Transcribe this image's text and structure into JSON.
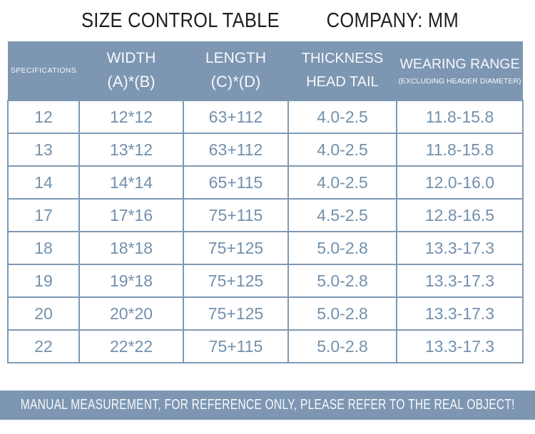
{
  "title": {
    "left": "SIZE CONTROL TABLE",
    "right": "COMPANY: MM"
  },
  "table": {
    "columns": [
      {
        "line1": "SPECIFICATIONS",
        "line2": ""
      },
      {
        "line1": "WIDTH",
        "line2": "(A)*(B)"
      },
      {
        "line1": "LENGTH",
        "line2": "(C)*(D)"
      },
      {
        "line1": "THICKNESS",
        "line2": "HEAD TAIL"
      },
      {
        "line1": "WEARING RANGE",
        "line2": "(EXCLUDING HEADER DIAMETER)"
      }
    ],
    "rows": [
      [
        "12",
        "12*12",
        "63+112",
        "4.0-2.5",
        "11.8-15.8"
      ],
      [
        "13",
        "13*12",
        "63+112",
        "4.0-2.5",
        "11.8-15.8"
      ],
      [
        "14",
        "14*14",
        "65+115",
        "4.0-2.5",
        "12.0-16.0"
      ],
      [
        "17",
        "17*16",
        "75+115",
        "4.5-2.5",
        "12.8-16.5"
      ],
      [
        "18",
        "18*18",
        "75+125",
        "5.0-2.8",
        "13.3-17.3"
      ],
      [
        "19",
        "19*18",
        "75+125",
        "5.0-2.8",
        "13.3-17.3"
      ],
      [
        "20",
        "20*20",
        "75+125",
        "5.0-2.8",
        "13.3-17.3"
      ],
      [
        "22",
        "22*22",
        "75+115",
        "5.0-2.8",
        "13.3-17.3"
      ]
    ]
  },
  "footer": {
    "text": "MANUAL MEASUREMENT, FOR REFERENCE ONLY, PLEASE REFER TO THE REAL OBJECT!"
  },
  "colors": {
    "header_bg": "#7d96b2",
    "footer_bg": "#7d96b2",
    "border": "#7f99b5",
    "cell_text": "#7390ad",
    "header_text": "#f6f9fb",
    "title_text": "#1e1e1e"
  }
}
